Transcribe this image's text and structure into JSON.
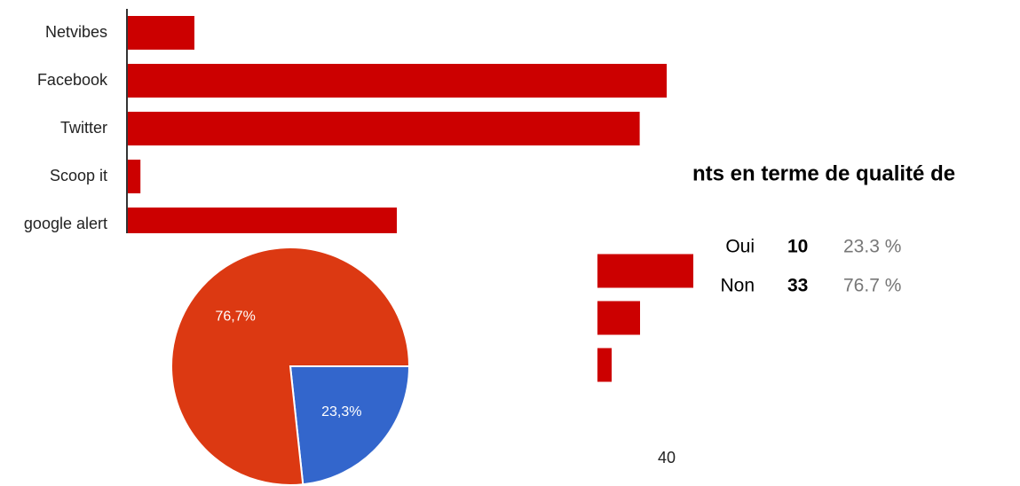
{
  "chart_data": [
    {
      "type": "bar",
      "orientation": "horizontal",
      "categories": [
        "Netvibes",
        "Facebook",
        "Twitter",
        "Scoop it",
        "google alert"
      ],
      "values": [
        5,
        40,
        38,
        1,
        20
      ],
      "color": "#cc0000",
      "xlim": [
        0,
        40
      ],
      "xticks": [
        40
      ]
    },
    {
      "type": "pie",
      "values": [
        23.3,
        76.7
      ],
      "value_labels": [
        "23,3%",
        "76,7%"
      ],
      "colors": [
        "#3366cc",
        "#dc3912"
      ]
    },
    {
      "type": "bar",
      "orientation": "horizontal",
      "values": [
        27,
        12,
        4
      ],
      "color": "#cc0000",
      "xlim": [
        0,
        27
      ]
    }
  ],
  "section": {
    "title": "nts en terme de qualité de",
    "table": {
      "rows": [
        [
          "Oui",
          10,
          "23.3 %"
        ],
        [
          "Non",
          33,
          "76.7 %"
        ]
      ]
    }
  }
}
